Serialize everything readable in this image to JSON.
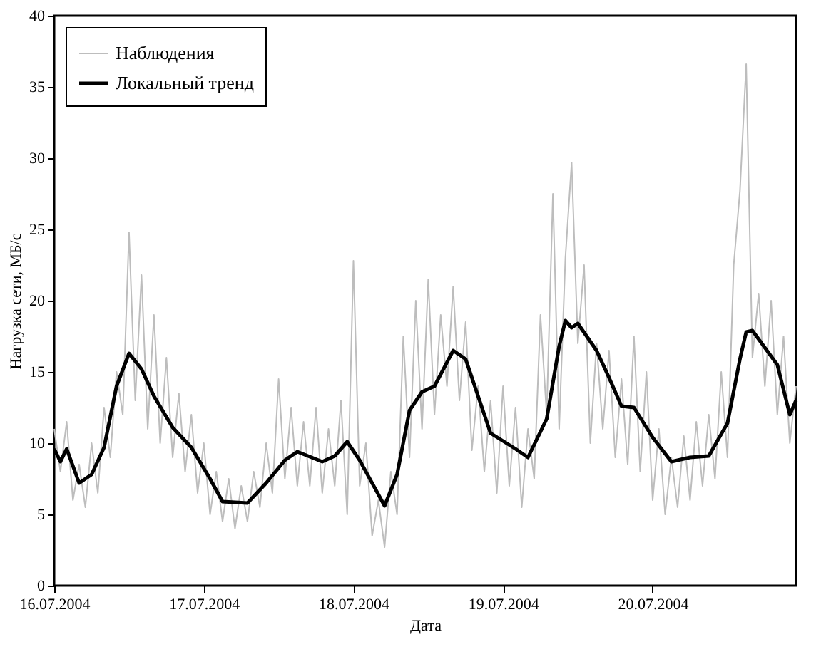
{
  "chart_data": {
    "type": "line",
    "xlabel": "Дата",
    "ylabel": "Нагрузка сети, МБ/с",
    "xlim": [
      "2004-07-16T00:00",
      "2004-07-20T23:00"
    ],
    "xticks": [
      {
        "value": "2004-07-16",
        "label": "16.07.2004"
      },
      {
        "value": "2004-07-17",
        "label": "17.07.2004"
      },
      {
        "value": "2004-07-18",
        "label": "18.07.2004"
      },
      {
        "value": "2004-07-19",
        "label": "19.07.2004"
      },
      {
        "value": "2004-07-20",
        "label": "20.07.2004"
      }
    ],
    "ylim": [
      0,
      40
    ],
    "yticks": [
      0,
      5,
      10,
      15,
      20,
      25,
      30,
      35,
      40
    ],
    "grid": false,
    "legend": "top left",
    "line_style": "solid",
    "marker": "none",
    "series": [
      {
        "name": "Наблюдения",
        "color": "#bdbdbd",
        "x": [
          "2004-07-16T00:00",
          "2004-07-16T01:00",
          "2004-07-16T02:00",
          "2004-07-16T03:00",
          "2004-07-16T04:00",
          "2004-07-16T05:00",
          "2004-07-16T06:00",
          "2004-07-16T07:00",
          "2004-07-16T08:00",
          "2004-07-16T09:00",
          "2004-07-16T10:00",
          "2004-07-16T11:00",
          "2004-07-16T12:00",
          "2004-07-16T13:00",
          "2004-07-16T14:00",
          "2004-07-16T15:00",
          "2004-07-16T16:00",
          "2004-07-16T17:00",
          "2004-07-16T18:00",
          "2004-07-16T19:00",
          "2004-07-16T20:00",
          "2004-07-16T21:00",
          "2004-07-16T22:00",
          "2004-07-16T23:00",
          "2004-07-17T00:00",
          "2004-07-17T01:00",
          "2004-07-17T02:00",
          "2004-07-17T03:00",
          "2004-07-17T04:00",
          "2004-07-17T05:00",
          "2004-07-17T06:00",
          "2004-07-17T07:00",
          "2004-07-17T08:00",
          "2004-07-17T09:00",
          "2004-07-17T10:00",
          "2004-07-17T11:00",
          "2004-07-17T12:00",
          "2004-07-17T13:00",
          "2004-07-17T14:00",
          "2004-07-17T15:00",
          "2004-07-17T16:00",
          "2004-07-17T17:00",
          "2004-07-17T18:00",
          "2004-07-17T19:00",
          "2004-07-17T20:00",
          "2004-07-17T21:00",
          "2004-07-17T22:00",
          "2004-07-17T23:00",
          "2004-07-18T00:00",
          "2004-07-18T01:00",
          "2004-07-18T02:00",
          "2004-07-18T03:00",
          "2004-07-18T04:00",
          "2004-07-18T05:00",
          "2004-07-18T06:00",
          "2004-07-18T07:00",
          "2004-07-18T08:00",
          "2004-07-18T09:00",
          "2004-07-18T10:00",
          "2004-07-18T11:00",
          "2004-07-18T12:00",
          "2004-07-18T13:00",
          "2004-07-18T14:00",
          "2004-07-18T15:00",
          "2004-07-18T16:00",
          "2004-07-18T17:00",
          "2004-07-18T18:00",
          "2004-07-18T19:00",
          "2004-07-18T20:00",
          "2004-07-18T21:00",
          "2004-07-18T22:00",
          "2004-07-18T23:00",
          "2004-07-19T00:00",
          "2004-07-19T01:00",
          "2004-07-19T02:00",
          "2004-07-19T03:00",
          "2004-07-19T04:00",
          "2004-07-19T05:00",
          "2004-07-19T06:00",
          "2004-07-19T07:00",
          "2004-07-19T08:00",
          "2004-07-19T09:00",
          "2004-07-19T10:00",
          "2004-07-19T11:00",
          "2004-07-19T12:00",
          "2004-07-19T13:00",
          "2004-07-19T14:00",
          "2004-07-19T15:00",
          "2004-07-19T16:00",
          "2004-07-19T17:00",
          "2004-07-19T18:00",
          "2004-07-19T19:00",
          "2004-07-19T20:00",
          "2004-07-19T21:00",
          "2004-07-19T22:00",
          "2004-07-19T23:00",
          "2004-07-20T00:00",
          "2004-07-20T01:00",
          "2004-07-20T02:00",
          "2004-07-20T03:00",
          "2004-07-20T04:00",
          "2004-07-20T05:00",
          "2004-07-20T06:00",
          "2004-07-20T07:00",
          "2004-07-20T08:00",
          "2004-07-20T09:00",
          "2004-07-20T10:00",
          "2004-07-20T11:00",
          "2004-07-20T12:00",
          "2004-07-20T13:00",
          "2004-07-20T14:00",
          "2004-07-20T15:00",
          "2004-07-20T16:00",
          "2004-07-20T17:00",
          "2004-07-20T18:00",
          "2004-07-20T19:00",
          "2004-07-20T20:00",
          "2004-07-20T21:00",
          "2004-07-20T22:00",
          "2004-07-20T23:00"
        ],
        "values": [
          11,
          8,
          11.5,
          6,
          8.5,
          5.5,
          10,
          6.5,
          12.5,
          9,
          15,
          12,
          24.8,
          13,
          21.8,
          11,
          19,
          10,
          16,
          9,
          13.5,
          8,
          12,
          6.5,
          10,
          5,
          8,
          4.5,
          7.5,
          4,
          7,
          4.5,
          8,
          5.5,
          10,
          6.5,
          14.5,
          7.5,
          12.5,
          7,
          11.5,
          7,
          12.5,
          6.5,
          11,
          7,
          13,
          5,
          22.8,
          7,
          10,
          3.5,
          6,
          2.7,
          8,
          5,
          17.5,
          9,
          20,
          11,
          21.5,
          12,
          19,
          14,
          21,
          13,
          18.5,
          9.5,
          14,
          8,
          13,
          6.5,
          14,
          7,
          12.5,
          5.5,
          11,
          7.5,
          19,
          12,
          27.5,
          11,
          23,
          29.7,
          17,
          22.5,
          10,
          17,
          11,
          16.5,
          9,
          14.5,
          8.5,
          17.5,
          8,
          15,
          6,
          11,
          5,
          9,
          5.5,
          10.5,
          6,
          11.5,
          7,
          12,
          7.5,
          15,
          9,
          22.5,
          27.7,
          36.6,
          16,
          20.5,
          14,
          20,
          12,
          17.5,
          10,
          14
        ]
      },
      {
        "name": "Локальный тренд",
        "color": "#000000",
        "x": [
          "2004-07-16T00:00",
          "2004-07-16T01:00",
          "2004-07-16T02:00",
          "2004-07-16T04:00",
          "2004-07-16T06:00",
          "2004-07-16T08:00",
          "2004-07-16T10:00",
          "2004-07-16T12:00",
          "2004-07-16T14:00",
          "2004-07-16T16:00",
          "2004-07-16T19:00",
          "2004-07-16T22:00",
          "2004-07-17T01:00",
          "2004-07-17T03:00",
          "2004-07-17T07:00",
          "2004-07-17T10:00",
          "2004-07-17T13:00",
          "2004-07-17T15:00",
          "2004-07-17T19:00",
          "2004-07-17T21:00",
          "2004-07-17T23:00",
          "2004-07-18T01:00",
          "2004-07-18T05:00",
          "2004-07-18T07:00",
          "2004-07-18T09:00",
          "2004-07-18T11:00",
          "2004-07-18T13:00",
          "2004-07-18T16:00",
          "2004-07-18T18:00",
          "2004-07-18T22:00",
          "2004-07-19T02:00",
          "2004-07-19T04:00",
          "2004-07-19T07:00",
          "2004-07-19T09:00",
          "2004-07-19T10:00",
          "2004-07-19T11:00",
          "2004-07-19T12:00",
          "2004-07-19T15:00",
          "2004-07-19T17:00",
          "2004-07-19T19:00",
          "2004-07-19T21:00",
          "2004-07-20T00:00",
          "2004-07-20T03:00",
          "2004-07-20T06:00",
          "2004-07-20T09:00",
          "2004-07-20T12:00",
          "2004-07-20T14:00",
          "2004-07-20T15:00",
          "2004-07-20T16:00",
          "2004-07-20T20:00",
          "2004-07-20T22:00",
          "2004-07-20T23:00"
        ],
        "values": [
          9.6,
          8.7,
          9.6,
          7.2,
          7.8,
          9.7,
          14.0,
          16.3,
          15.2,
          13.3,
          11.1,
          9.7,
          7.5,
          5.9,
          5.8,
          7.2,
          8.8,
          9.4,
          8.7,
          9.1,
          10.1,
          8.8,
          5.6,
          7.8,
          12.3,
          13.6,
          14.0,
          16.5,
          15.9,
          10.7,
          9.6,
          9.0,
          11.7,
          16.8,
          18.6,
          18.1,
          18.4,
          16.5,
          14.6,
          12.6,
          12.5,
          10.4,
          8.7,
          9.0,
          9.1,
          11.4,
          15.9,
          17.8,
          17.9,
          15.5,
          12.0,
          13.0
        ]
      }
    ]
  }
}
